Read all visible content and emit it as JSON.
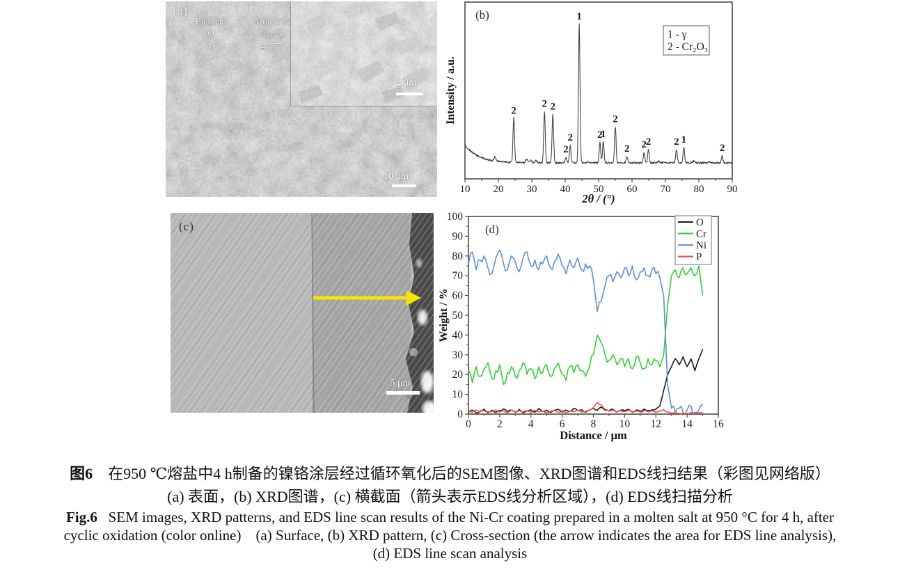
{
  "panels": {
    "a": {
      "label": "(a)",
      "eds_table": {
        "headers": [
          "Element",
          "Atom / %"
        ],
        "rows": [
          {
            "element": "O",
            "atom": "54.43"
          },
          {
            "element": "Cr",
            "atom": "45.57"
          }
        ]
      },
      "inset_scalebar": "2 μm",
      "scalebar": "10 μm"
    },
    "b": {
      "label": "(b)"
    },
    "c": {
      "label": "(c)",
      "scalebar": "5 μm",
      "arrow_color": "#f7e400"
    },
    "d": {
      "label": "(d)"
    }
  },
  "caption": {
    "cn_fig_no": "图6",
    "cn_line1": "　在950 ℃熔盐中4 h制备的镍铬涂层经过循环氧化后的SEM图像、XRD图谱和EDS线扫结果（彩图见网络版）",
    "cn_line2": "(a) 表面，(b) XRD图谱，(c) 横截面（箭头表示EDS线分析区域），(d) EDS线扫描分析",
    "en_fig_no": "Fig.6",
    "en_line1": "   SEM images, XRD patterns, and EDS line scan results of the Ni-Cr coating prepared in a molten salt at 950 °C for 4 h, after",
    "en_line2": "cyclic oxidation (color online)    (a) Surface, (b) XRD pattern, (c) Cross-section (the arrow indicates the area for EDS line analysis),",
    "en_line3": "(d) EDS line scan analysis"
  },
  "chart_data": [
    {
      "id": "xrd",
      "type": "line",
      "panel_label": "(b)",
      "xlabel": "2θ / (°)",
      "ylabel": "Intensity / a.u.",
      "xlim": [
        10,
        90
      ],
      "xticks": [
        10,
        20,
        30,
        40,
        50,
        60,
        70,
        80,
        90
      ],
      "grid": false,
      "line_color": "#444444",
      "legend_position": "top-right",
      "legend_entries": [
        "1 - γ",
        "2 - Cr₂O₃"
      ],
      "background_decay": {
        "start_rel_height": 0.13,
        "decay_constant_deg": 4.0
      },
      "peaks": [
        {
          "two_theta": 24.6,
          "rel_intensity": 0.32,
          "phase": "2"
        },
        {
          "two_theta": 33.8,
          "rel_intensity": 0.37,
          "phase": "2"
        },
        {
          "two_theta": 36.3,
          "rel_intensity": 0.35,
          "phase": "2"
        },
        {
          "two_theta": 40.2,
          "rel_intensity": 0.04,
          "phase": "2"
        },
        {
          "two_theta": 41.5,
          "rel_intensity": 0.125,
          "phase": "2"
        },
        {
          "two_theta": 44.2,
          "rel_intensity": 1.0,
          "phase": "1"
        },
        {
          "two_theta": 50.4,
          "rel_intensity": 0.145,
          "phase": "2"
        },
        {
          "two_theta": 51.4,
          "rel_intensity": 0.15,
          "phase": "1"
        },
        {
          "two_theta": 55.0,
          "rel_intensity": 0.26,
          "phase": "2"
        },
        {
          "two_theta": 58.5,
          "rel_intensity": 0.045,
          "phase": "2"
        },
        {
          "two_theta": 63.6,
          "rel_intensity": 0.075,
          "phase": "2"
        },
        {
          "two_theta": 64.9,
          "rel_intensity": 0.095,
          "phase": "2"
        },
        {
          "two_theta": 73.3,
          "rel_intensity": 0.095,
          "phase": "2"
        },
        {
          "two_theta": 75.5,
          "rel_intensity": 0.11,
          "phase": "1"
        },
        {
          "two_theta": 87.0,
          "rel_intensity": 0.05,
          "phase": "2"
        }
      ],
      "unlabeled_bumps": [
        {
          "two_theta": 19.0,
          "rel_intensity": 0.03
        },
        {
          "two_theta": 28.5,
          "rel_intensity": 0.025
        },
        {
          "two_theta": 29.6,
          "rel_intensity": 0.02
        },
        {
          "two_theta": 31.2,
          "rel_intensity": 0.015
        },
        {
          "two_theta": 46.8,
          "rel_intensity": 0.012
        },
        {
          "two_theta": 68.0,
          "rel_intensity": 0.012
        },
        {
          "two_theta": 78.5,
          "rel_intensity": 0.012
        },
        {
          "two_theta": 83.0,
          "rel_intensity": 0.01
        }
      ]
    },
    {
      "id": "eds",
      "type": "line",
      "panel_label": "(d)",
      "xlabel": "Distance / μm",
      "ylabel": "Weight / %",
      "xlim": [
        0,
        16
      ],
      "ylim": [
        0,
        100
      ],
      "xticks": [
        0,
        2,
        4,
        6,
        8,
        10,
        12,
        14,
        16
      ],
      "yticks": [
        0,
        10,
        20,
        30,
        40,
        50,
        60,
        70,
        80,
        90,
        100
      ],
      "grid": false,
      "legend_position": "top-right",
      "x_step": 0.25,
      "series": [
        {
          "name": "O",
          "color": "#1a1a1a",
          "jitter": 0.8,
          "values": [
            1,
            2,
            0.5,
            1.5,
            2.5,
            1,
            2,
            0.8,
            1.8,
            2.6,
            1.2,
            2,
            1,
            2.4,
            0.6,
            1.6,
            2.2,
            1,
            2.8,
            1.4,
            2,
            0.8,
            1.8,
            2.4,
            1,
            2,
            1.4,
            3,
            1.6,
            2.2,
            1,
            2,
            3,
            2,
            3.5,
            2,
            1.5,
            2.5,
            1,
            2,
            1.6,
            2.4,
            1,
            2,
            1.4,
            2.6,
            1.8,
            2.2,
            2.5,
            4,
            12,
            20,
            24,
            28,
            25,
            29,
            24,
            28,
            22,
            28,
            33
          ]
        },
        {
          "name": "Cr",
          "color": "#2fd32f",
          "jitter": 5,
          "values": [
            22,
            16,
            24,
            19,
            23,
            26,
            18,
            22,
            25,
            15,
            21,
            24,
            19,
            22,
            26,
            20,
            23,
            18,
            24,
            21,
            25,
            19,
            23,
            26,
            20,
            17,
            24,
            21,
            25,
            22,
            19,
            24,
            30,
            40,
            36,
            30,
            27,
            30,
            25,
            28,
            24,
            28,
            23,
            29,
            26,
            23,
            28,
            25,
            27,
            24,
            30,
            55,
            70,
            73,
            69,
            74,
            71,
            74,
            70,
            75,
            60
          ]
        },
        {
          "name": "Ni",
          "color": "#5b8fe0",
          "jitter": 5,
          "values": [
            76,
            82,
            73,
            78,
            80,
            74,
            71,
            79,
            83,
            76,
            73,
            80,
            77,
            72,
            79,
            82,
            75,
            78,
            73,
            76,
            80,
            74,
            77,
            81,
            75,
            71,
            78,
            74,
            79,
            73,
            76,
            75,
            68,
            52,
            57,
            65,
            70,
            67,
            72,
            69,
            74,
            70,
            75,
            68,
            72,
            74,
            70,
            73,
            71,
            69,
            60,
            15,
            3,
            1,
            3,
            0.5,
            2,
            4,
            1,
            2,
            5
          ]
        },
        {
          "name": "P",
          "color": "#f54a42",
          "jitter": 0.8,
          "values": [
            1.5,
            0.8,
            2,
            1.2,
            1.8,
            0.6,
            1.4,
            2.2,
            1,
            1.6,
            0.8,
            2,
            1.2,
            1.8,
            1,
            1.5,
            0.7,
            1.9,
            1.1,
            1.6,
            0.9,
            1.4,
            2,
            1,
            1.7,
            0.8,
            1.5,
            1.1,
            1.9,
            0.9,
            1.3,
            2,
            3.5,
            6,
            4.5,
            2.5,
            1.5,
            2,
            1,
            1.8,
            1.2,
            1.9,
            0.8,
            1.5,
            1,
            1.7,
            1.2,
            1.8,
            1,
            1.5,
            2.2,
            1,
            0.5,
            0.8,
            0.3,
            0.6,
            0.4,
            0.8,
            0.3,
            0.6,
            0.4
          ]
        }
      ]
    }
  ]
}
